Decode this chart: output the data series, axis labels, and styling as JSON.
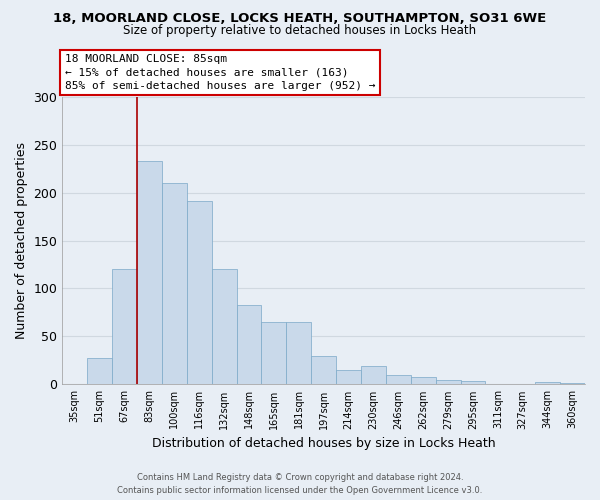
{
  "title1": "18, MOORLAND CLOSE, LOCKS HEATH, SOUTHAMPTON, SO31 6WE",
  "title2": "Size of property relative to detached houses in Locks Heath",
  "xlabel": "Distribution of detached houses by size in Locks Heath",
  "ylabel": "Number of detached properties",
  "categories": [
    "35sqm",
    "51sqm",
    "67sqm",
    "83sqm",
    "100sqm",
    "116sqm",
    "132sqm",
    "148sqm",
    "165sqm",
    "181sqm",
    "197sqm",
    "214sqm",
    "230sqm",
    "246sqm",
    "262sqm",
    "279sqm",
    "295sqm",
    "311sqm",
    "327sqm",
    "344sqm",
    "360sqm"
  ],
  "values": [
    0,
    28,
    120,
    233,
    210,
    191,
    120,
    83,
    65,
    65,
    30,
    15,
    19,
    10,
    8,
    5,
    4,
    0,
    0,
    3,
    2
  ],
  "bar_color": "#c9d9ea",
  "bar_edge_color": "#7aa8c8",
  "vline_color": "#aa0000",
  "vline_x_index": 3,
  "annotation_text_line1": "18 MOORLAND CLOSE: 85sqm",
  "annotation_text_line2": "← 15% of detached houses are smaller (163)",
  "annotation_text_line3": "85% of semi-detached houses are larger (952) →",
  "annotation_box_color": "#ffffff",
  "annotation_border_color": "#cc0000",
  "ylim": [
    0,
    300
  ],
  "yticks": [
    0,
    50,
    100,
    150,
    200,
    250,
    300
  ],
  "background_color": "#e8eef5",
  "grid_color": "#d0d8e0",
  "footer_line1": "Contains HM Land Registry data © Crown copyright and database right 2024.",
  "footer_line2": "Contains public sector information licensed under the Open Government Licence v3.0."
}
